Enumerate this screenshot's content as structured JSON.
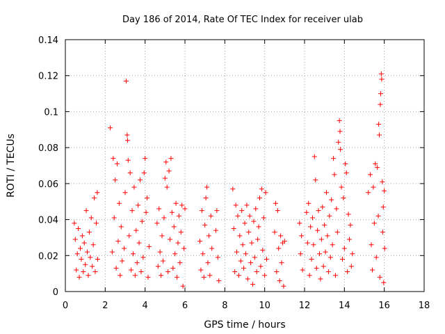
{
  "chart_data": {
    "type": "scatter",
    "title": "Day 186 of 2014, Rate Of TEC Index for receiver ulab",
    "xlabel": "GPS time / hours",
    "ylabel": "ROTI / TECUs",
    "xlim": [
      0,
      18
    ],
    "ylim": [
      0,
      0.14
    ],
    "xticks": [
      "0",
      "2",
      "4",
      "6",
      "8",
      "10",
      "12",
      "14",
      "16",
      "18"
    ],
    "yticks": [
      "0",
      "0.02",
      "0.04",
      "0.06",
      "0.08",
      "0.1",
      "0.12",
      "0.14"
    ],
    "grid": true,
    "marker": "+",
    "color": "#ff0000",
    "series": [
      {
        "name": "ROTI",
        "points": [
          [
            0.45,
            0.038
          ],
          [
            0.5,
            0.029
          ],
          [
            0.55,
            0.012
          ],
          [
            0.6,
            0.021
          ],
          [
            0.65,
            0.035
          ],
          [
            0.7,
            0.008
          ],
          [
            0.75,
            0.024
          ],
          [
            0.8,
            0.018
          ],
          [
            0.85,
            0.031
          ],
          [
            0.9,
            0.011
          ],
          [
            0.95,
            0.027
          ],
          [
            1.0,
            0.015
          ],
          [
            1.05,
            0.045
          ],
          [
            1.1,
            0.022
          ],
          [
            1.15,
            0.009
          ],
          [
            1.2,
            0.033
          ],
          [
            1.25,
            0.019
          ],
          [
            1.3,
            0.041
          ],
          [
            1.35,
            0.014
          ],
          [
            1.4,
            0.026
          ],
          [
            1.45,
            0.052
          ],
          [
            1.5,
            0.011
          ],
          [
            1.55,
            0.038
          ],
          [
            1.6,
            0.055
          ],
          [
            1.62,
            0.018
          ],
          [
            2.25,
            0.091
          ],
          [
            2.35,
            0.022
          ],
          [
            2.4,
            0.074
          ],
          [
            2.45,
            0.041
          ],
          [
            2.5,
            0.062
          ],
          [
            2.55,
            0.013
          ],
          [
            2.6,
            0.071
          ],
          [
            2.65,
            0.028
          ],
          [
            2.7,
            0.049
          ],
          [
            2.75,
            0.009
          ],
          [
            2.8,
            0.036
          ],
          [
            2.85,
            0.017
          ],
          [
            2.95,
            0.024
          ],
          [
            3.0,
            0.055
          ],
          [
            3.05,
            0.117
          ],
          [
            3.1,
            0.087
          ],
          [
            3.12,
            0.084
          ],
          [
            3.15,
            0.073
          ],
          [
            3.2,
            0.031
          ],
          [
            3.25,
            0.066
          ],
          [
            3.3,
            0.012
          ],
          [
            3.35,
            0.045
          ],
          [
            3.4,
            0.021
          ],
          [
            3.45,
            0.058
          ],
          [
            3.5,
            0.009
          ],
          [
            3.55,
            0.034
          ],
          [
            3.6,
            0.016
          ],
          [
            3.65,
            0.048
          ],
          [
            3.7,
            0.027
          ],
          [
            3.75,
            0.062
          ],
          [
            3.8,
            0.011
          ],
          [
            3.85,
            0.039
          ],
          [
            3.9,
            0.019
          ],
          [
            3.95,
            0.066
          ],
          [
            4.0,
            0.074
          ],
          [
            4.05,
            0.044
          ],
          [
            4.1,
            0.052
          ],
          [
            4.15,
            0.008
          ],
          [
            4.2,
            0.025
          ],
          [
            4.6,
            0.038
          ],
          [
            4.65,
            0.014
          ],
          [
            4.7,
            0.046
          ],
          [
            4.75,
            0.022
          ],
          [
            4.8,
            0.009
          ],
          [
            4.85,
            0.031
          ],
          [
            4.9,
            0.017
          ],
          [
            4.95,
            0.041
          ],
          [
            5.0,
            0.063
          ],
          [
            5.05,
            0.072
          ],
          [
            5.1,
            0.058
          ],
          [
            5.15,
            0.011
          ],
          [
            5.2,
            0.067
          ],
          [
            5.25,
            0.029
          ],
          [
            5.3,
            0.074
          ],
          [
            5.35,
            0.044
          ],
          [
            5.4,
            0.013
          ],
          [
            5.45,
            0.036
          ],
          [
            5.5,
            0.021
          ],
          [
            5.55,
            0.049
          ],
          [
            5.6,
            0.008
          ],
          [
            5.65,
            0.027
          ],
          [
            5.7,
            0.042
          ],
          [
            5.75,
            0.016
          ],
          [
            5.8,
            0.033
          ],
          [
            5.85,
            0.048
          ],
          [
            5.9,
            0.003
          ],
          [
            5.95,
            0.024
          ],
          [
            6.0,
            0.046
          ],
          [
            6.75,
            0.028
          ],
          [
            6.8,
            0.012
          ],
          [
            6.85,
            0.045
          ],
          [
            6.9,
            0.021
          ],
          [
            6.95,
            0.008
          ],
          [
            7.0,
            0.037
          ],
          [
            7.05,
            0.052
          ],
          [
            7.1,
            0.058
          ],
          [
            7.15,
            0.016
          ],
          [
            7.2,
            0.031
          ],
          [
            7.25,
            0.009
          ],
          [
            7.3,
            0.042
          ],
          [
            7.35,
            0.024
          ],
          [
            7.55,
            0.034
          ],
          [
            7.6,
            0.045
          ],
          [
            7.65,
            0.019
          ],
          [
            7.7,
            0.006
          ],
          [
            8.4,
            0.057
          ],
          [
            8.45,
            0.035
          ],
          [
            8.5,
            0.011
          ],
          [
            8.55,
            0.048
          ],
          [
            8.6,
            0.022
          ],
          [
            8.65,
            0.042
          ],
          [
            8.7,
            0.009
          ],
          [
            8.75,
            0.031
          ],
          [
            8.8,
            0.017
          ],
          [
            8.85,
            0.045
          ],
          [
            8.9,
            0.026
          ],
          [
            8.95,
            0.013
          ],
          [
            9.0,
            0.038
          ],
          [
            9.05,
            0.021
          ],
          [
            9.1,
            0.048
          ],
          [
            9.15,
            0.007
          ],
          [
            9.2,
            0.033
          ],
          [
            9.25,
            0.042
          ],
          [
            9.3,
            0.016
          ],
          [
            9.35,
            0.027
          ],
          [
            9.4,
            0.004
          ],
          [
            9.45,
            0.039
          ],
          [
            9.5,
            0.019
          ],
          [
            9.55,
            0.046
          ],
          [
            9.6,
            0.011
          ],
          [
            9.65,
            0.029
          ],
          [
            9.7,
            0.036
          ],
          [
            9.75,
            0.052
          ],
          [
            9.8,
            0.014
          ],
          [
            9.85,
            0.057
          ],
          [
            9.9,
            0.023
          ],
          [
            9.95,
            0.041
          ],
          [
            10.0,
            0.009
          ],
          [
            10.05,
            0.055
          ],
          [
            10.1,
            0.018
          ],
          [
            10.5,
            0.033
          ],
          [
            10.55,
            0.049
          ],
          [
            10.6,
            0.011
          ],
          [
            10.65,
            0.045
          ],
          [
            10.7,
            0.024
          ],
          [
            10.75,
            0.006
          ],
          [
            10.8,
            0.031
          ],
          [
            10.85,
            0.016
          ],
          [
            10.9,
            0.027
          ],
          [
            10.95,
            0.003
          ],
          [
            11.0,
            0.028
          ],
          [
            11.75,
            0.038
          ],
          [
            11.8,
            0.021
          ],
          [
            11.85,
            0.031
          ],
          [
            11.9,
            0.012
          ],
          [
            12.1,
            0.044
          ],
          [
            12.15,
            0.027
          ],
          [
            12.2,
            0.049
          ],
          [
            12.25,
            0.009
          ],
          [
            12.3,
            0.036
          ],
          [
            12.35,
            0.018
          ],
          [
            12.4,
            0.041
          ],
          [
            12.45,
            0.026
          ],
          [
            12.5,
            0.075
          ],
          [
            12.55,
            0.062
          ],
          [
            12.6,
            0.013
          ],
          [
            12.65,
            0.034
          ],
          [
            12.7,
            0.045
          ],
          [
            12.75,
            0.021
          ],
          [
            12.8,
            0.007
          ],
          [
            12.85,
            0.029
          ],
          [
            12.9,
            0.047
          ],
          [
            12.95,
            0.014
          ],
          [
            13.0,
            0.037
          ],
          [
            13.05,
            0.022
          ],
          [
            13.1,
            0.055
          ],
          [
            13.15,
            0.031
          ],
          [
            13.2,
            0.011
          ],
          [
            13.25,
            0.042
          ],
          [
            13.3,
            0.019
          ],
          [
            13.35,
            0.051
          ],
          [
            13.4,
            0.026
          ],
          [
            13.45,
            0.074
          ],
          [
            13.5,
            0.065
          ],
          [
            13.55,
            0.009
          ],
          [
            13.6,
            0.046
          ],
          [
            13.65,
            0.033
          ],
          [
            13.7,
            0.083
          ],
          [
            13.75,
            0.095
          ],
          [
            13.78,
            0.089
          ],
          [
            13.8,
            0.079
          ],
          [
            13.85,
            0.058
          ],
          [
            13.9,
            0.018
          ],
          [
            13.95,
            0.052
          ],
          [
            14.0,
            0.024
          ],
          [
            14.05,
            0.071
          ],
          [
            14.1,
            0.066
          ],
          [
            14.15,
            0.011
          ],
          [
            14.2,
            0.043
          ],
          [
            14.25,
            0.029
          ],
          [
            14.3,
            0.037
          ],
          [
            14.35,
            0.014
          ],
          [
            14.4,
            0.021
          ],
          [
            15.2,
            0.055
          ],
          [
            15.3,
            0.065
          ],
          [
            15.35,
            0.026
          ],
          [
            15.4,
            0.012
          ],
          [
            15.45,
            0.058
          ],
          [
            15.5,
            0.038
          ],
          [
            15.55,
            0.071
          ],
          [
            15.6,
            0.019
          ],
          [
            15.65,
            0.069
          ],
          [
            15.7,
            0.042
          ],
          [
            15.72,
            0.093
          ],
          [
            15.75,
            0.087
          ],
          [
            15.78,
            0.008
          ],
          [
            15.8,
            0.104
          ],
          [
            15.82,
            0.11
          ],
          [
            15.85,
            0.121
          ],
          [
            15.87,
            0.118
          ],
          [
            15.9,
            0.061
          ],
          [
            15.92,
            0.033
          ],
          [
            15.95,
            0.047
          ],
          [
            15.97,
            0.005
          ],
          [
            16.0,
            0.056
          ],
          [
            16.02,
            0.024
          ]
        ]
      }
    ]
  }
}
